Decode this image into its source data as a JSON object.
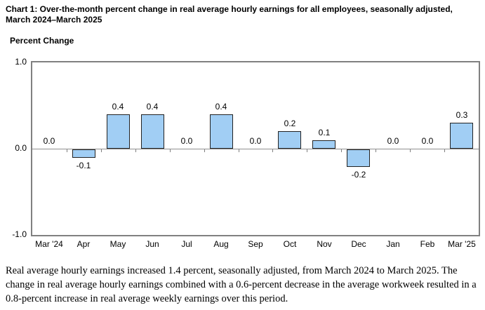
{
  "page": {
    "footer": "Real average hourly earnings increased 1.4 percent, seasonally adjusted, from March 2024 to March 2025. The change in real average hourly earnings combined with a 0.6-percent decrease in the average workweek resulted in a 0.8-percent increase in real average weekly earnings over this period."
  },
  "chart_data": {
    "type": "bar",
    "title": "Chart 1: Over-the-month percent change in real average hourly earnings for all employees, seasonally adjusted, March 2024–March 2025",
    "ylabel": "Percent Change",
    "xlabel": "",
    "categories": [
      "Mar '24",
      "Apr",
      "May",
      "Jun",
      "Jul",
      "Aug",
      "Sep",
      "Oct",
      "Nov",
      "Dec",
      "Jan",
      "Feb",
      "Mar '25"
    ],
    "values": [
      0.0,
      -0.1,
      0.4,
      0.4,
      0.0,
      0.4,
      0.0,
      0.2,
      0.1,
      -0.2,
      0.0,
      0.0,
      0.3
    ],
    "data_labels": [
      "0.0",
      "-0.1",
      "0.4",
      "0.4",
      "0.0",
      "0.4",
      "0.0",
      "0.2",
      "0.1",
      "-0.2",
      "0.0",
      "0.0",
      "0.3"
    ],
    "ylim": [
      -1.0,
      1.0
    ],
    "yticks": [
      {
        "label": "1.0",
        "value": 1.0
      },
      {
        "label": "0.0",
        "value": 0.0
      },
      {
        "label": "-1.0",
        "value": -1.0
      }
    ],
    "grid": "zero-line-only",
    "legend": "none",
    "colors": {
      "bar_fill": "#A1CEF4",
      "bar_border": "#222222",
      "frame": "#808080",
      "zero_line": "#909090",
      "text": "#000000"
    }
  }
}
